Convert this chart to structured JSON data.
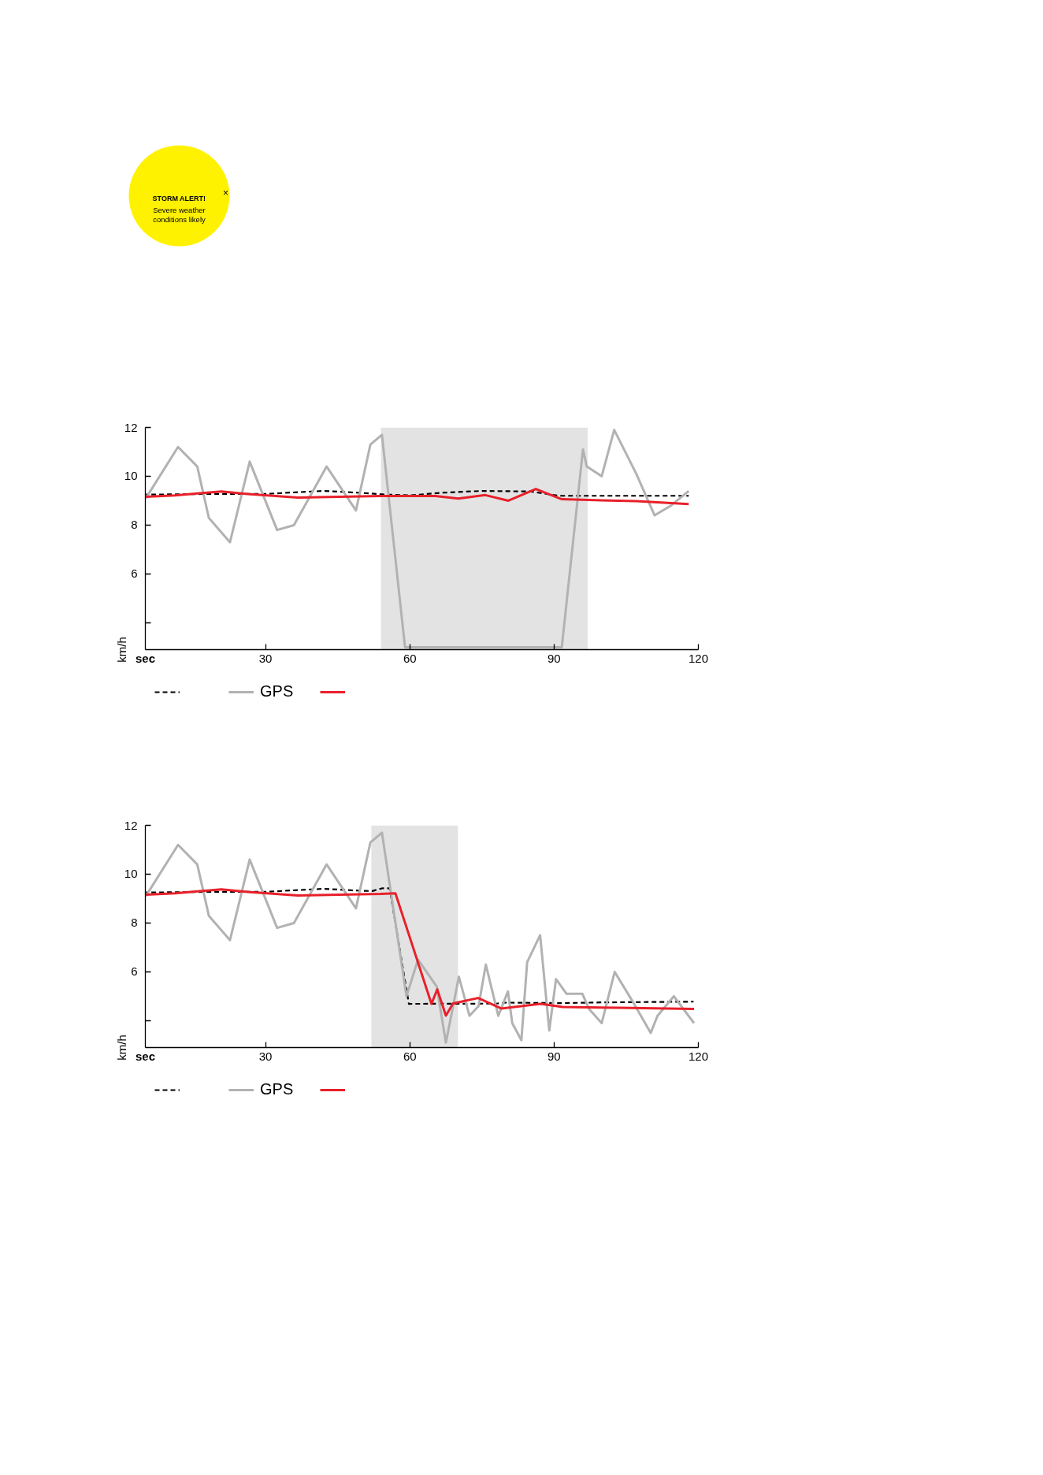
{
  "chart_data": [
    {
      "type": "other",
      "title": "STORM ALERT!",
      "annotations": [
        "Severe weather\nconditions likely",
        "×"
      ],
      "color": "#fff200"
    },
    {
      "type": "line",
      "xlabel": "sec",
      "ylabel": "km/h",
      "xlim": [
        5,
        120
      ],
      "ylim": [
        2.9,
        12
      ],
      "xticks": [
        30,
        60,
        90,
        120
      ],
      "yticks": [
        {
          "value": 4,
          "label": null
        },
        6,
        8,
        10,
        12
      ],
      "grid": false,
      "legend": "bottom left",
      "bands": [
        {
          "axis": "x",
          "from": 54,
          "to": 97,
          "color": "#e3e3e3"
        }
      ],
      "series": [
        {
          "color": "#000000",
          "line_style": "dashed",
          "x": [
            5.1,
            20,
            30,
            42,
            50,
            55,
            60,
            67,
            75,
            85,
            91,
            118
          ],
          "values": [
            9.25,
            9.28,
            9.28,
            9.4,
            9.32,
            9.25,
            9.22,
            9.33,
            9.4,
            9.38,
            9.2,
            9.2
          ]
        },
        {
          "name": "GPS",
          "color": "#b2b2b2",
          "line_style": "solid",
          "x": [
            5.1,
            11.8,
            15.8,
            18.2,
            22.6,
            26.7,
            32.4,
            35.9,
            42.7,
            48.8,
            51.8,
            54.2,
            59.0,
            91.6,
            96.0,
            96.8,
            99.9,
            102.5,
            107.1,
            110.9,
            114.3,
            118.0
          ],
          "values": [
            9.1,
            11.2,
            10.4,
            8.3,
            7.3,
            10.6,
            7.8,
            8.0,
            10.4,
            8.6,
            11.3,
            11.7,
            3.0,
            3.0,
            11.1,
            10.4,
            10.0,
            11.9,
            10.1,
            8.4,
            8.8,
            9.4
          ]
        },
        {
          "color": "#e8202a",
          "line_style": "solid",
          "x": [
            5.1,
            11.2,
            20.8,
            26.3,
            36.7,
            53.9,
            65.3,
            70.1,
            75.7,
            80.5,
            86.2,
            91.6,
            107.1,
            118.0
          ],
          "values": [
            9.16,
            9.22,
            9.38,
            9.27,
            9.13,
            9.19,
            9.19,
            9.09,
            9.23,
            9.0,
            9.48,
            9.06,
            8.98,
            8.86
          ]
        }
      ]
    },
    {
      "type": "line",
      "xlabel": "sec",
      "ylabel": "km/h",
      "xlim": [
        5,
        120
      ],
      "ylim": [
        2.9,
        12
      ],
      "xticks": [
        30,
        60,
        90,
        120
      ],
      "yticks": [
        {
          "value": 4,
          "label": null
        },
        6,
        8,
        10,
        12
      ],
      "grid": false,
      "legend": "bottom left",
      "bands": [
        {
          "axis": "x",
          "from": 52,
          "to": 70,
          "color": "#e3e3e3"
        }
      ],
      "series": [
        {
          "color": "#000000",
          "line_style": "dashed",
          "x": [
            5.1,
            20,
            30,
            42,
            50,
            52.2,
            54.2,
            55.8,
            58.6,
            59.8,
            78,
            80,
            92,
            100,
            119
          ],
          "values": [
            9.25,
            9.28,
            9.28,
            9.4,
            9.32,
            9.31,
            9.42,
            9.42,
            6.1,
            4.69,
            4.7,
            4.74,
            4.72,
            4.75,
            4.78
          ]
        },
        {
          "name": "GPS",
          "color": "#b2b2b2",
          "line_style": "solid",
          "x": [
            5.1,
            11.8,
            15.8,
            18.2,
            22.6,
            26.7,
            32.4,
            35.9,
            42.7,
            48.8,
            51.8,
            54.2,
            59.3,
            61.7,
            65.6,
            67.5,
            70.2,
            72.4,
            74.3,
            75.8,
            78.4,
            80.4,
            81.3,
            83.2,
            84.4,
            87.1,
            89.0,
            90.4,
            92.6,
            95.9,
            97.2,
            99.9,
            102.6,
            106.3,
            110.1,
            111.5,
            114.9,
            119.1
          ],
          "values": [
            9.1,
            11.2,
            10.4,
            8.3,
            7.3,
            10.6,
            7.8,
            8.0,
            10.4,
            8.6,
            11.3,
            11.7,
            5.0,
            6.5,
            5.4,
            3.1,
            5.8,
            4.2,
            4.6,
            6.3,
            4.2,
            5.2,
            3.9,
            3.2,
            6.4,
            7.5,
            3.6,
            5.7,
            5.1,
            5.1,
            4.5,
            3.9,
            6.0,
            4.8,
            3.5,
            4.2,
            5.0,
            3.9
          ]
        },
        {
          "color": "#e8202a",
          "line_style": "solid",
          "x": [
            5.1,
            11.2,
            20.8,
            26.3,
            36.7,
            53.9,
            57.0,
            64.5,
            65.7,
            67.5,
            69.0,
            74.2,
            79.0,
            87.2,
            91.8,
            103.3,
            119.1
          ],
          "values": [
            9.16,
            9.22,
            9.38,
            9.27,
            9.13,
            9.19,
            9.22,
            4.69,
            5.28,
            4.21,
            4.71,
            4.93,
            4.5,
            4.69,
            4.56,
            4.53,
            4.48
          ]
        }
      ]
    }
  ]
}
